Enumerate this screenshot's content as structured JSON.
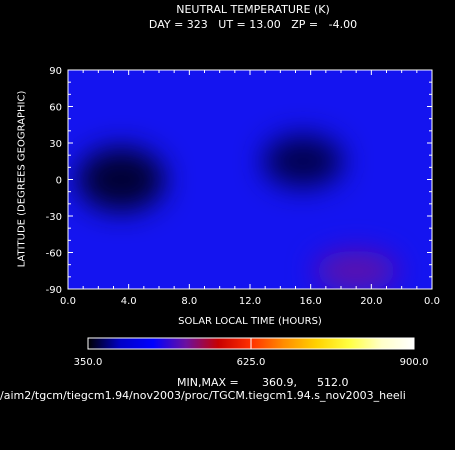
{
  "chart_data": {
    "type": "heatmap",
    "title": "NEUTRAL TEMPERATURE (K)",
    "subtitle": "DAY = 323   UT = 13.00   ZP =   -4.00",
    "xlabel": "SOLAR LOCAL TIME (HOURS)",
    "ylabel": "LATITUDE (DEGREES GEOGRAPHIC)",
    "xlim": [
      0,
      24
    ],
    "ylim": [
      -90,
      90
    ],
    "x_ticks": [
      "0.0",
      "4.0",
      "8.0",
      "12.0",
      "16.0",
      "20.0",
      "0.0"
    ],
    "x_tick_values": [
      0,
      4,
      8,
      12,
      16,
      20,
      24
    ],
    "y_ticks": [
      "90",
      "60",
      "30",
      "0",
      "-30",
      "-60",
      "-90"
    ],
    "y_tick_values": [
      90,
      60,
      30,
      0,
      -30,
      -60,
      -90
    ],
    "grid": false,
    "colorbar": {
      "min": 350.0,
      "max": 900.0,
      "labels": [
        "350.0",
        "625.0",
        "900.0"
      ],
      "label_values": [
        350,
        625,
        900
      ],
      "stops": [
        "#000000",
        "#0000c8",
        "#0000ff",
        "#6a10a0",
        "#c80000",
        "#ff3000",
        "#ff8c00",
        "#ffd200",
        "#ffff40",
        "#ffffc8",
        "#ffffff"
      ]
    },
    "min_label": "MIN,MAX =",
    "min": "360.9,",
    "max": "512.0",
    "features": [
      {
        "kind": "cold-minimum",
        "x": 3.5,
        "y": 0,
        "value": 361
      },
      {
        "kind": "cold-minimum",
        "x": 15.5,
        "y": 15,
        "value": 372
      },
      {
        "kind": "warm-maximum",
        "x": 19.0,
        "y": -75,
        "value": 512
      }
    ],
    "footer": "/aim2/tgcm/tiegcm1.94/nov2003/proc/TGCM.tiegcm1.94.s_nov2003_heeli"
  }
}
